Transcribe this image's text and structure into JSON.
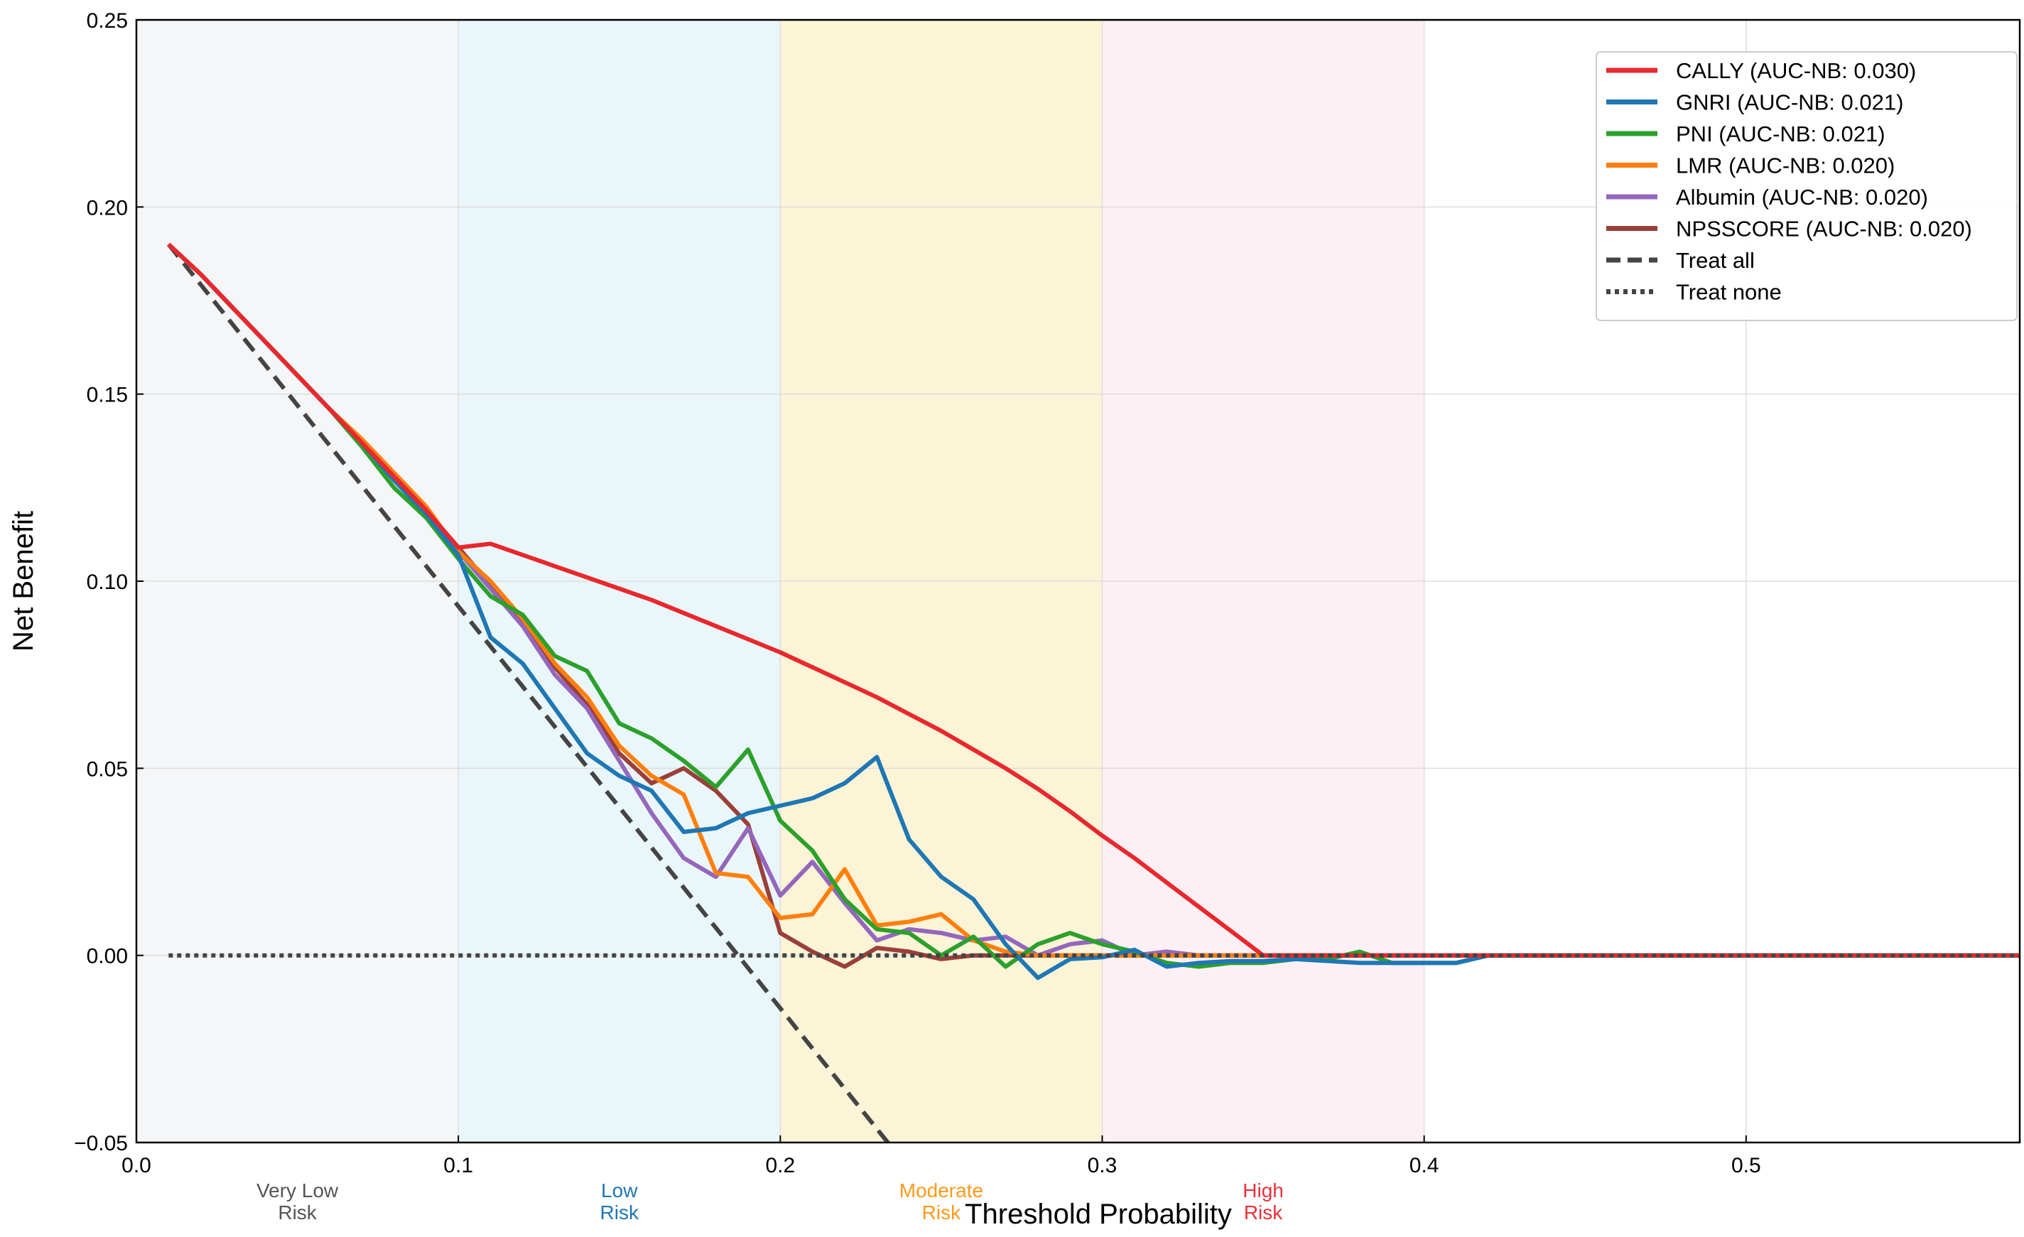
{
  "chart_data": {
    "type": "line",
    "title": "",
    "xlabel": "Threshold Probability",
    "ylabel": "Net Benefit",
    "xlim": [
      0.0,
      0.585
    ],
    "ylim": [
      -0.05,
      0.25
    ],
    "grid": true,
    "legend_position": "top-right",
    "x_ticks": [
      {
        "value": 0.0,
        "label": "0.0"
      },
      {
        "value": 0.1,
        "label": "0.1"
      },
      {
        "value": 0.2,
        "label": "0.2"
      },
      {
        "value": 0.3,
        "label": "0.3"
      },
      {
        "value": 0.4,
        "label": "0.4"
      },
      {
        "value": 0.5,
        "label": "0.5"
      }
    ],
    "y_ticks": [
      {
        "value": -0.05,
        "label": "−0.05"
      },
      {
        "value": 0.0,
        "label": "0.00"
      },
      {
        "value": 0.05,
        "label": "0.05"
      },
      {
        "value": 0.1,
        "label": "0.10"
      },
      {
        "value": 0.15,
        "label": "0.15"
      },
      {
        "value": 0.2,
        "label": "0.20"
      },
      {
        "value": 0.25,
        "label": "0.25"
      }
    ],
    "risk_zones": [
      {
        "from": 0.0,
        "to": 0.1,
        "line1": "Very Low",
        "line2": "Risk",
        "fill": "#f4f6f8",
        "label_color": "#555555"
      },
      {
        "from": 0.1,
        "to": 0.2,
        "line1": "Low",
        "line2": "Risk",
        "fill": "#eaf7fa",
        "label_color": "#1f77b4"
      },
      {
        "from": 0.2,
        "to": 0.3,
        "line1": "Moderate",
        "line2": "Risk",
        "fill": "#fcf4d6",
        "label_color": "#ff9a1a"
      },
      {
        "from": 0.3,
        "to": 0.4,
        "line1": "High",
        "line2": "Risk",
        "fill": "#fdf0f4",
        "label_color": "#e8313c"
      }
    ],
    "series": [
      {
        "name": "CALLY (AUC-NB: 0.030)",
        "color": "#e8282d",
        "style": "solid",
        "x": [
          0.01,
          0.02,
          0.03,
          0.04,
          0.05,
          0.06,
          0.07,
          0.08,
          0.09,
          0.1,
          0.11,
          0.12,
          0.13,
          0.14,
          0.15,
          0.16,
          0.17,
          0.18,
          0.19,
          0.2,
          0.21,
          0.22,
          0.23,
          0.24,
          0.25,
          0.26,
          0.27,
          0.28,
          0.29,
          0.3,
          0.31,
          0.32,
          0.33,
          0.34,
          0.35,
          0.36,
          0.4,
          0.5,
          0.585
        ],
        "y": [
          0.19,
          0.182,
          0.173,
          0.164,
          0.155,
          0.146,
          0.137,
          0.128,
          0.119,
          0.109,
          0.11,
          0.107,
          0.104,
          0.101,
          0.098,
          0.095,
          0.0915,
          0.088,
          0.0845,
          0.081,
          0.077,
          0.073,
          0.069,
          0.0645,
          0.06,
          0.055,
          0.05,
          0.0445,
          0.0385,
          0.032,
          0.026,
          0.0195,
          0.013,
          0.0065,
          0.0,
          0.0,
          0.0,
          0.0,
          0.0
        ]
      },
      {
        "name": "GNRI (AUC-NB: 0.021)",
        "color": "#1f77b4",
        "style": "solid",
        "x": [
          0.01,
          0.02,
          0.03,
          0.04,
          0.05,
          0.06,
          0.07,
          0.08,
          0.09,
          0.1,
          0.11,
          0.12,
          0.13,
          0.14,
          0.15,
          0.16,
          0.17,
          0.18,
          0.19,
          0.2,
          0.21,
          0.22,
          0.23,
          0.24,
          0.25,
          0.26,
          0.27,
          0.28,
          0.29,
          0.3,
          0.31,
          0.32,
          0.33,
          0.34,
          0.35,
          0.36,
          0.38,
          0.4,
          0.41,
          0.42,
          0.5,
          0.585
        ],
        "y": [
          0.19,
          0.182,
          0.173,
          0.164,
          0.155,
          0.146,
          0.137,
          0.127,
          0.118,
          0.107,
          0.085,
          0.078,
          0.066,
          0.054,
          0.048,
          0.044,
          0.033,
          0.034,
          0.038,
          0.04,
          0.042,
          0.046,
          0.053,
          0.031,
          0.021,
          0.015,
          0.003,
          -0.006,
          -0.001,
          -0.0005,
          0.0015,
          -0.003,
          -0.002,
          -0.0015,
          -0.0015,
          -0.001,
          -0.002,
          -0.002,
          -0.002,
          0.0,
          0.0,
          0.0
        ]
      },
      {
        "name": "PNI (AUC-NB: 0.021)",
        "color": "#2ca02c",
        "style": "solid",
        "x": [
          0.01,
          0.02,
          0.03,
          0.04,
          0.05,
          0.06,
          0.07,
          0.08,
          0.09,
          0.1,
          0.11,
          0.12,
          0.13,
          0.14,
          0.15,
          0.16,
          0.17,
          0.18,
          0.19,
          0.2,
          0.21,
          0.22,
          0.23,
          0.24,
          0.25,
          0.26,
          0.27,
          0.28,
          0.29,
          0.3,
          0.31,
          0.32,
          0.33,
          0.34,
          0.35,
          0.36,
          0.37,
          0.38,
          0.39,
          0.4,
          0.41,
          0.42,
          0.5,
          0.585
        ],
        "y": [
          0.19,
          0.182,
          0.173,
          0.164,
          0.155,
          0.146,
          0.136,
          0.125,
          0.117,
          0.106,
          0.096,
          0.091,
          0.08,
          0.076,
          0.062,
          0.058,
          0.052,
          0.045,
          0.055,
          0.036,
          0.028,
          0.015,
          0.007,
          0.006,
          0.0,
          0.005,
          -0.003,
          0.003,
          0.006,
          0.003,
          0.001,
          -0.002,
          -0.003,
          -0.002,
          -0.002,
          -0.001,
          -0.001,
          0.001,
          -0.002,
          -0.002,
          -0.002,
          0.0,
          0.0,
          0.0
        ]
      },
      {
        "name": "LMR (AUC-NB: 0.020)",
        "color": "#ff7f0e",
        "style": "solid",
        "x": [
          0.01,
          0.02,
          0.03,
          0.04,
          0.05,
          0.06,
          0.07,
          0.08,
          0.09,
          0.1,
          0.11,
          0.12,
          0.13,
          0.14,
          0.15,
          0.16,
          0.17,
          0.18,
          0.19,
          0.2,
          0.21,
          0.22,
          0.23,
          0.24,
          0.25,
          0.26,
          0.27,
          0.28,
          0.29,
          0.3,
          0.35,
          0.4,
          0.5,
          0.585
        ],
        "y": [
          0.19,
          0.182,
          0.173,
          0.164,
          0.155,
          0.146,
          0.138,
          0.129,
          0.12,
          0.108,
          0.1,
          0.09,
          0.078,
          0.069,
          0.056,
          0.048,
          0.043,
          0.022,
          0.021,
          0.01,
          0.011,
          0.023,
          0.008,
          0.009,
          0.011,
          0.004,
          0.001,
          0.0,
          0.0,
          0.0,
          0.0,
          0.0,
          0.0,
          0.0
        ]
      },
      {
        "name": "Albumin (AUC-NB: 0.020)",
        "color": "#9467bd",
        "style": "solid",
        "x": [
          0.01,
          0.02,
          0.03,
          0.04,
          0.05,
          0.06,
          0.07,
          0.08,
          0.09,
          0.1,
          0.11,
          0.12,
          0.13,
          0.14,
          0.15,
          0.16,
          0.17,
          0.18,
          0.19,
          0.2,
          0.21,
          0.22,
          0.23,
          0.24,
          0.25,
          0.26,
          0.27,
          0.28,
          0.29,
          0.3,
          0.31,
          0.32,
          0.33,
          0.35,
          0.4,
          0.5,
          0.585
        ],
        "y": [
          0.19,
          0.182,
          0.173,
          0.164,
          0.155,
          0.146,
          0.137,
          0.127,
          0.118,
          0.108,
          0.098,
          0.088,
          0.075,
          0.066,
          0.052,
          0.038,
          0.026,
          0.021,
          0.034,
          0.016,
          0.025,
          0.014,
          0.004,
          0.007,
          0.006,
          0.004,
          0.005,
          0.0,
          0.003,
          0.004,
          0.0,
          0.001,
          0.0,
          0.0,
          0.0,
          0.0,
          0.0
        ]
      },
      {
        "name": "NPSSCORE (AUC-NB: 0.020)",
        "color": "#9a3f3a",
        "style": "solid",
        "x": [
          0.01,
          0.02,
          0.03,
          0.04,
          0.05,
          0.06,
          0.07,
          0.08,
          0.09,
          0.1,
          0.11,
          0.12,
          0.13,
          0.14,
          0.15,
          0.16,
          0.17,
          0.18,
          0.19,
          0.2,
          0.21,
          0.22,
          0.23,
          0.24,
          0.25,
          0.26,
          0.27,
          0.3,
          0.35,
          0.4,
          0.5,
          0.585
        ],
        "y": [
          0.19,
          0.182,
          0.173,
          0.164,
          0.155,
          0.146,
          0.137,
          0.128,
          0.119,
          0.109,
          0.099,
          0.089,
          0.077,
          0.067,
          0.054,
          0.046,
          0.05,
          0.044,
          0.035,
          0.006,
          0.001,
          -0.003,
          0.002,
          0.001,
          -0.001,
          0.0,
          0.0,
          0.0,
          0.0,
          0.0,
          0.0,
          0.0
        ]
      },
      {
        "name": "Treat all",
        "color": "#444444",
        "style": "dashed",
        "x": [
          0.01,
          0.235
        ],
        "y": [
          0.19,
          -0.0517
        ]
      },
      {
        "name": "Treat none",
        "color": "#444444",
        "style": "dotted",
        "x": [
          0.01,
          0.585
        ],
        "y": [
          0.0,
          0.0
        ]
      }
    ]
  }
}
